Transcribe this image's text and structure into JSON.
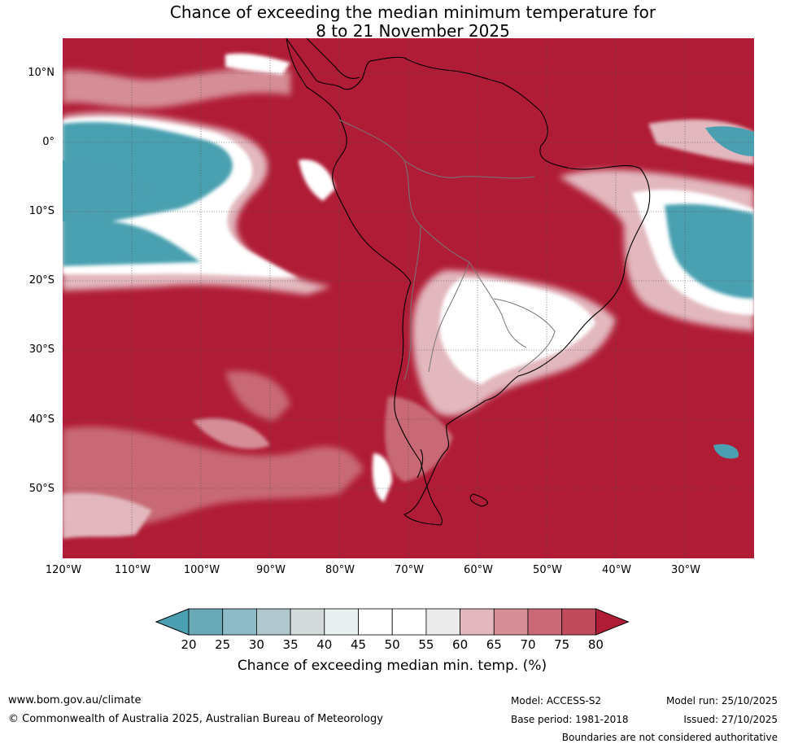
{
  "title": {
    "line1": "Chance of exceeding the median minimum temperature for",
    "line2": "8 to 21 November 2025"
  },
  "map": {
    "lat_labels": [
      "10°N",
      "0°",
      "10°S",
      "20°S",
      "30°S",
      "40°S",
      "50°S"
    ],
    "lon_labels": [
      "120°W",
      "110°W",
      "100°W",
      "90°W",
      "80°W",
      "70°W",
      "60°W",
      "50°W",
      "40°W",
      "30°W"
    ],
    "lat_range": [
      -60,
      15
    ],
    "lon_range": [
      -120,
      -20
    ],
    "colors": {
      "ocean_high": "#b01c36",
      "cold": "#4aa0b0",
      "white": "#ffffff",
      "land_outline": "#000000",
      "border": "#777777"
    }
  },
  "colorbar": {
    "ticks": [
      "20",
      "25",
      "30",
      "35",
      "40",
      "45",
      "50",
      "55",
      "60",
      "65",
      "70",
      "75",
      "80"
    ],
    "colors": [
      "#4aa0b0",
      "#6aaab7",
      "#8cbac6",
      "#afc7cd",
      "#d4d9db",
      "#e9eff1",
      "#ffffff",
      "#ffffff",
      "#ebebec",
      "#e2b8be",
      "#d58d96",
      "#c86975",
      "#bf4b5a",
      "#b01c36"
    ],
    "label": "Chance of exceeding median min. temp. (%)"
  },
  "footer": {
    "website": "www.bom.gov.au/climate",
    "copyright": "© Commonwealth of Australia 2025, Australian Bureau of Meteorology",
    "model": "Model: ACCESS-S2",
    "base_period": "Base period: 1981-2018",
    "model_run": "Model run: 25/10/2025",
    "issued": "Issued: 27/10/2025",
    "disclaimer": "Boundaries are not considered authoritative"
  }
}
